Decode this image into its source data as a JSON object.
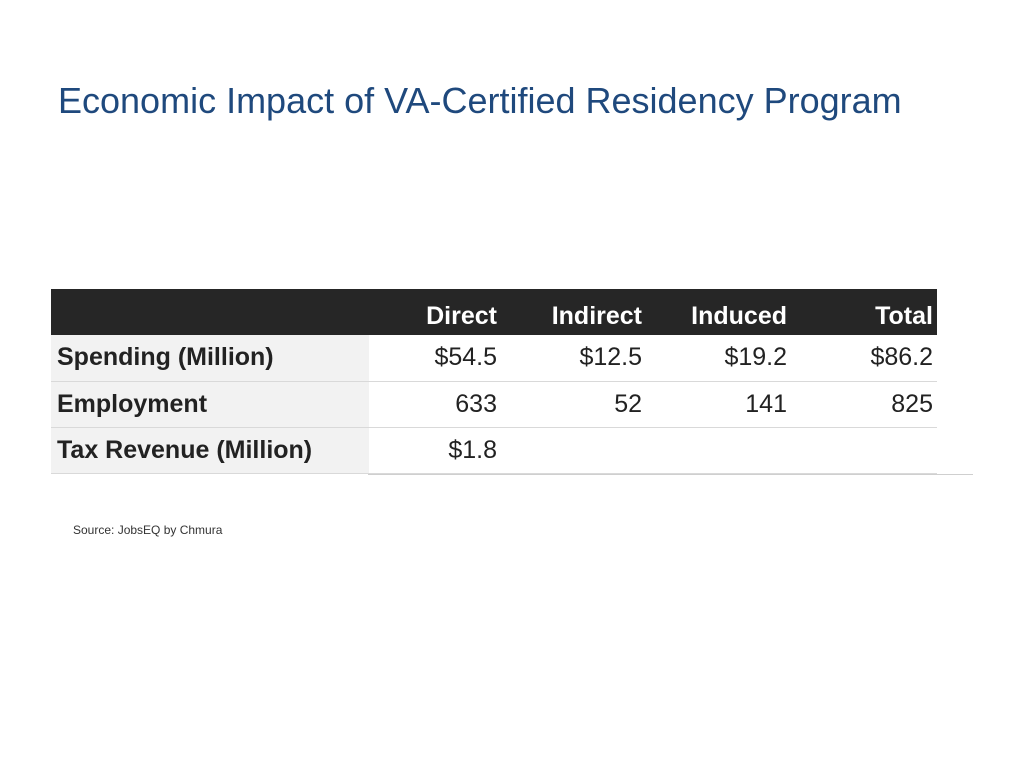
{
  "slide": {
    "title": "Economic Impact of VA-Certified Residency Program",
    "source": "Source: JobsEQ by Chmura"
  },
  "table": {
    "columns": [
      "",
      "Direct",
      "Indirect",
      "Induced",
      "Total"
    ],
    "rows": [
      {
        "label": "Spending (Million)",
        "cells": [
          "$54.5",
          "$12.5",
          "$19.2",
          "$86.2"
        ]
      },
      {
        "label": "Employment",
        "cells": [
          "633",
          "52",
          "141",
          "825"
        ]
      },
      {
        "label": "Tax Revenue (Million)",
        "cells": [
          "$1.8",
          "",
          "",
          ""
        ]
      }
    ]
  },
  "colors": {
    "title": "#1f497d",
    "header_background": "#262626",
    "row_label_background": "#f2f2f2"
  }
}
